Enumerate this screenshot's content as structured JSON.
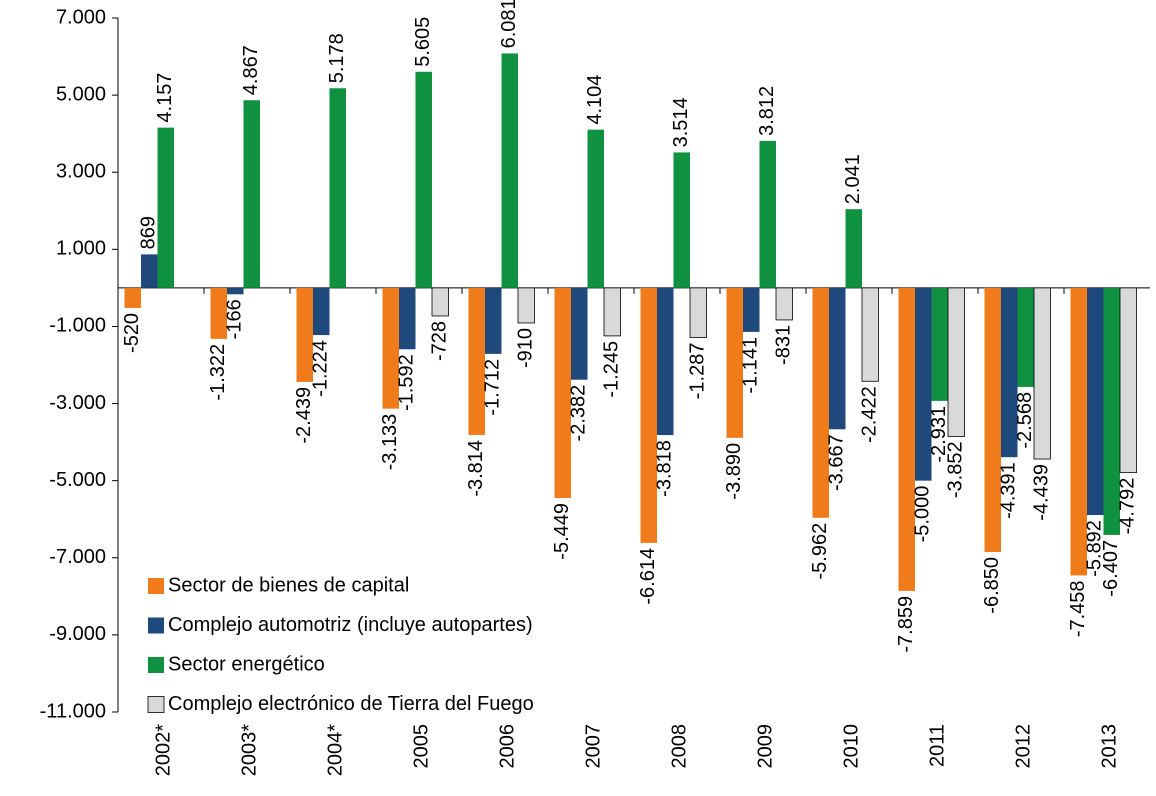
{
  "chart_data": {
    "type": "bar",
    "categories": [
      "2002*",
      "2003*",
      "2004*",
      "2005",
      "2006",
      "2007",
      "2008",
      "2009",
      "2010",
      "2011",
      "2012",
      "2013"
    ],
    "series": [
      {
        "name": "Sector de bienes de capital",
        "color": "#f07b1a",
        "values": [
          -520,
          -1322,
          -2439,
          -3133,
          -3814,
          -5449,
          -6614,
          -3890,
          -5962,
          -7859,
          -6850,
          -7458
        ],
        "value_labels": [
          "-520",
          "-1.322",
          "-2.439",
          "-3.133",
          "-3.814",
          "-5.449",
          "-6.614",
          "-3.890",
          "-5.962",
          "-7.859",
          "-6.850",
          "-7.458"
        ]
      },
      {
        "name": "Complejo automotriz (incluye autopartes)",
        "color": "#1f497d",
        "values": [
          869,
          -166,
          -1224,
          -1592,
          -1712,
          -2382,
          -3818,
          -1141,
          -3667,
          -5000,
          -4391,
          -5892
        ],
        "value_labels": [
          "869",
          "-166",
          "-1.224",
          "-1.592",
          "-1.712",
          "-2.382",
          "-3.818",
          "-1.141",
          "-3.667",
          "-5.000",
          "-4.391",
          "-5.892"
        ]
      },
      {
        "name": "Sector energético",
        "color": "#0f9140",
        "values": [
          4157,
          4867,
          5178,
          5605,
          6081,
          4104,
          3514,
          3812,
          2041,
          -2931,
          -2568,
          -6407
        ],
        "value_labels": [
          "4.157",
          "4.867",
          "5.178",
          "5.605",
          "6.081",
          "4.104",
          "3.514",
          "3.812",
          "2.041",
          "-2.931",
          "-2.568",
          "-6.407"
        ]
      },
      {
        "name": "Complejo electrónico de Tierra del Fuego",
        "color": "#d9d9d9",
        "values": [
          null,
          null,
          null,
          -728,
          -910,
          -1245,
          -1287,
          -831,
          -2422,
          -3852,
          -4439,
          -4792
        ],
        "value_labels": [
          null,
          null,
          null,
          "-728",
          "-910",
          "-1.245",
          "-1.287",
          "-831",
          "-2.422",
          "-3.852",
          "-4.439",
          "-4.792"
        ]
      }
    ],
    "ylim": [
      -11000,
      7000
    ],
    "yticks": [
      {
        "value": -11000,
        "label": "-11.000"
      },
      {
        "value": -9000,
        "label": "-9.000"
      },
      {
        "value": -7000,
        "label": "-7.000"
      },
      {
        "value": -5000,
        "label": "-5.000"
      },
      {
        "value": -3000,
        "label": "-3.000"
      },
      {
        "value": -1000,
        "label": "-1.000"
      },
      {
        "value": 1000,
        "label": "1.000"
      },
      {
        "value": 3000,
        "label": "3.000"
      },
      {
        "value": 5000,
        "label": "5.000"
      },
      {
        "value": 7000,
        "label": "7.000"
      }
    ],
    "grid": false,
    "legend": "lower left"
  }
}
